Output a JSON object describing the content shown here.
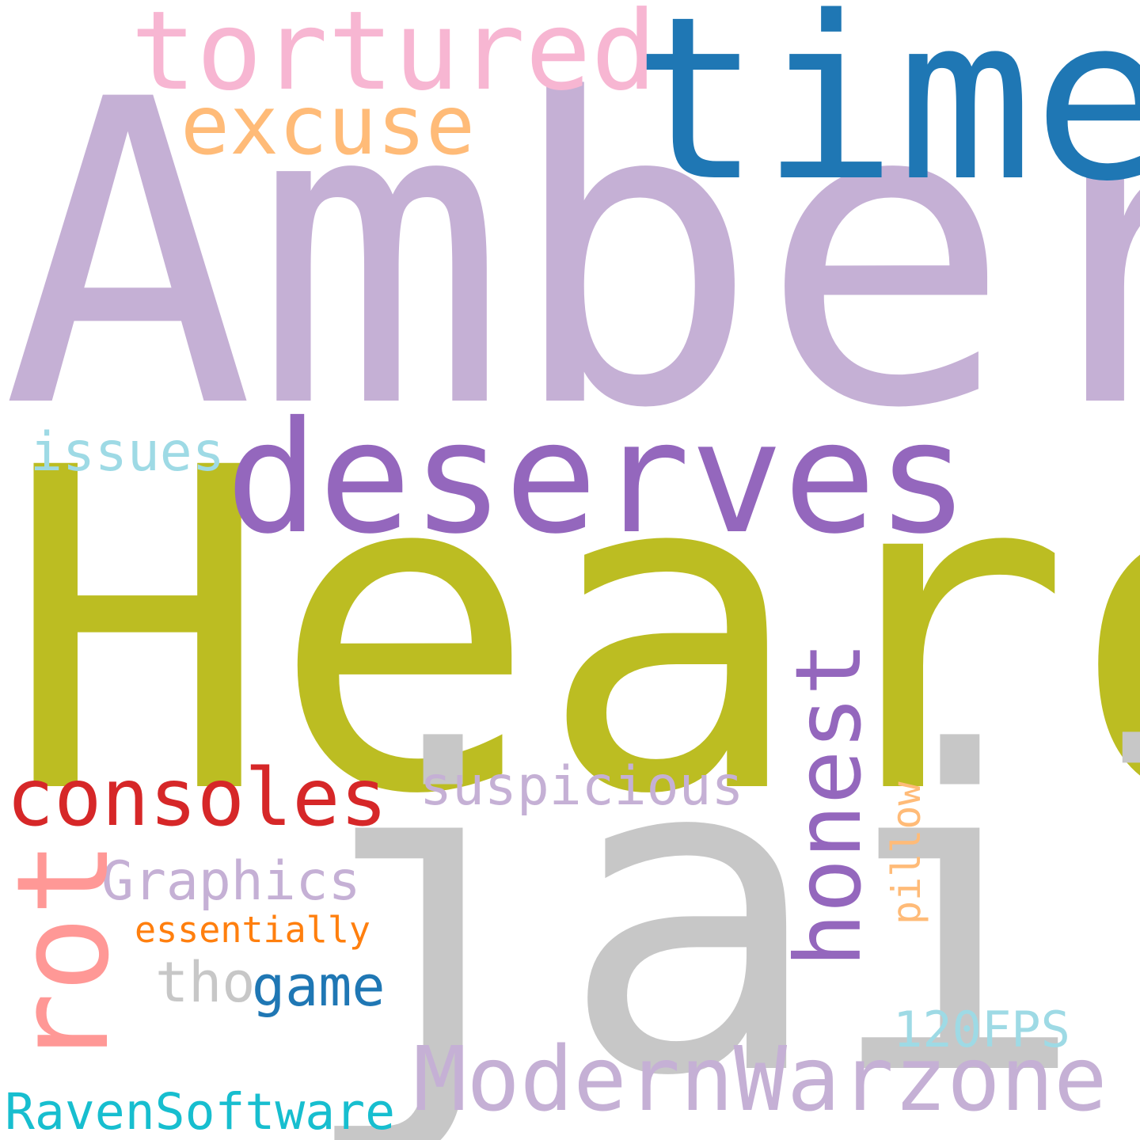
{
  "words": {
    "amber": {
      "text": "Amber",
      "color": "#c5b0d5"
    },
    "heard": {
      "text": "Heard",
      "color": "#bcbd22"
    },
    "jail": {
      "text": "jail",
      "color": "#c7c7c7"
    },
    "time": {
      "text": "time",
      "color": "#1f77b4"
    },
    "deserves": {
      "text": "deserves",
      "color": "#9467bd"
    },
    "tortured": {
      "text": "tortured",
      "color": "#f7b6d2"
    },
    "excuse": {
      "text": "excuse",
      "color": "#ffbb78"
    },
    "issues": {
      "text": "issues",
      "color": "#9edae5"
    },
    "honest": {
      "text": "honest",
      "color": "#9467bd"
    },
    "consoles": {
      "text": "consoles",
      "color": "#d62728"
    },
    "suspicious": {
      "text": "suspicious",
      "color": "#c5b0d5"
    },
    "rot": {
      "text": "rot",
      "color": "#ff9896"
    },
    "graphics": {
      "text": "Graphics",
      "color": "#c5b0d5"
    },
    "essentially": {
      "text": "essentially",
      "color": "#ff7f0e"
    },
    "pillow": {
      "text": "pillow",
      "color": "#ffbb78"
    },
    "tho": {
      "text": "tho",
      "color": "#c7c7c7"
    },
    "game": {
      "text": "game",
      "color": "#1f77b4"
    },
    "fps": {
      "text": "120FPS",
      "color": "#9edae5"
    },
    "modern": {
      "text": "ModernWarzone",
      "color": "#c5b0d5"
    },
    "raven": {
      "text": "RavenSoftware",
      "color": "#17becf"
    }
  }
}
